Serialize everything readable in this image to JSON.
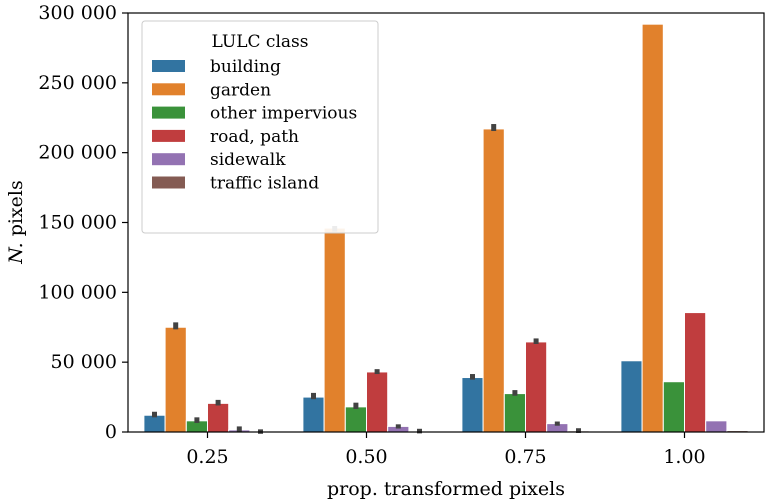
{
  "chart_data": {
    "type": "bar",
    "categories": [
      "0.25",
      "0.50",
      "0.75",
      "1.00"
    ],
    "xlabel": "prop. transformed pixels",
    "ylabel_parts": {
      "italic": "N.",
      "rest": " pixels"
    },
    "ylim": [
      0,
      300000
    ],
    "yticks": [
      0,
      50000,
      100000,
      150000,
      200000,
      250000,
      300000
    ],
    "ytick_labels": [
      "0",
      "50 000",
      "100 000",
      "150 000",
      "200 000",
      "250 000",
      "300 000"
    ],
    "legend": {
      "title": "LULC class",
      "placement": "upper-left"
    },
    "grid": false,
    "series": [
      {
        "name": "building",
        "color": "#3274a1",
        "values": [
          12000,
          25000,
          39000,
          51000
        ],
        "err": [
          13000,
          26500,
          40000,
          null
        ]
      },
      {
        "name": "garden",
        "color": "#e1812c",
        "values": [
          75000,
          146000,
          217000,
          292000
        ],
        "err": [
          77000,
          145000,
          219000,
          null
        ]
      },
      {
        "name": "other impervious",
        "color": "#3a923a",
        "values": [
          8000,
          18000,
          27500,
          36000
        ],
        "err": [
          9000,
          19500,
          28500,
          null
        ]
      },
      {
        "name": "road, path",
        "color": "#c03d3e",
        "values": [
          20500,
          43000,
          64500,
          85500
        ],
        "err": [
          21500,
          43500,
          65500,
          null
        ]
      },
      {
        "name": "sidewalk",
        "color": "#9372b2",
        "values": [
          1500,
          4000,
          6000,
          8000
        ],
        "err": [
          2500,
          4000,
          6000,
          null
        ]
      },
      {
        "name": "traffic island",
        "color": "#845b53",
        "values": [
          200,
          500,
          800,
          1000
        ],
        "err": [
          400,
          800,
          1200,
          null
        ]
      }
    ]
  }
}
